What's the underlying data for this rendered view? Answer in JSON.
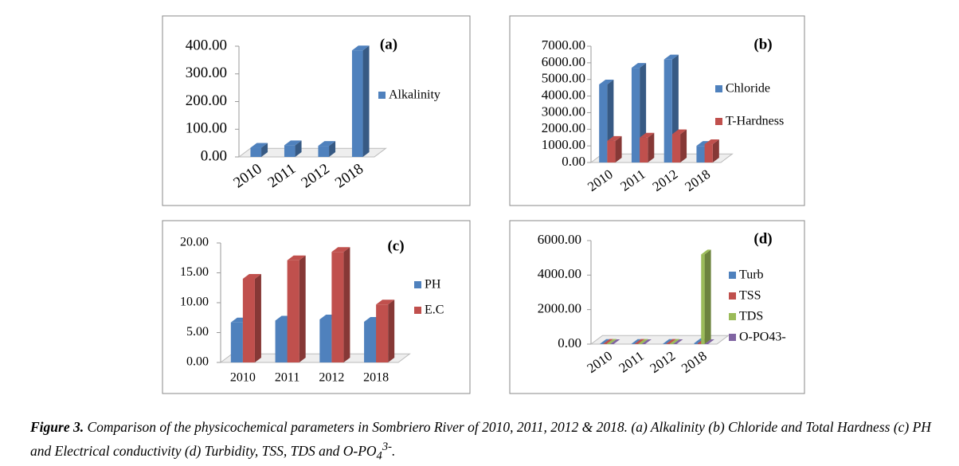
{
  "chart_data": [
    {
      "type": "bar",
      "panel_label": "(a)",
      "categories": [
        "2010",
        "2011",
        "2012",
        "2018"
      ],
      "series": [
        {
          "name": "Alkalinity",
          "color": "#4f81bd",
          "values": [
            33,
            42,
            40,
            385
          ]
        }
      ],
      "ylim": [
        0,
        400
      ],
      "yticks": [
        {
          "value": 0,
          "label": "0.00"
        },
        {
          "value": 100,
          "label": "100.00"
        },
        {
          "value": 200,
          "label": "200.00"
        },
        {
          "value": 300,
          "label": "300.00"
        },
        {
          "value": 400,
          "label": "400.00"
        }
      ]
    },
    {
      "type": "bar",
      "panel_label": "(b)",
      "categories": [
        "2010",
        "2011",
        "2012",
        "2018"
      ],
      "series": [
        {
          "name": "Chloride",
          "color": "#4f81bd",
          "values": [
            4700,
            5700,
            6200,
            1000
          ]
        },
        {
          "name": "T-Hardness",
          "color": "#c0504d",
          "values": [
            1300,
            1500,
            1700,
            1100
          ]
        }
      ],
      "ylim": [
        0,
        7000
      ],
      "yticks": [
        {
          "value": 0,
          "label": "0.00"
        },
        {
          "value": 1000,
          "label": "1000.00"
        },
        {
          "value": 2000,
          "label": "2000.00"
        },
        {
          "value": 3000,
          "label": "3000.00"
        },
        {
          "value": 4000,
          "label": "4000.00"
        },
        {
          "value": 5000,
          "label": "5000.00"
        },
        {
          "value": 6000,
          "label": "6000.00"
        },
        {
          "value": 7000,
          "label": "7000.00"
        }
      ]
    },
    {
      "type": "bar",
      "panel_label": "(c)",
      "categories": [
        "2010",
        "2011",
        "2012",
        "2018"
      ],
      "series": [
        {
          "name": "PH",
          "color": "#4f81bd",
          "values": [
            6.7,
            7.0,
            7.2,
            6.8
          ]
        },
        {
          "name": "E.C",
          "color": "#c0504d",
          "values": [
            14.0,
            17.1,
            18.5,
            9.7
          ]
        }
      ],
      "ylim": [
        0,
        20
      ],
      "yticks": [
        {
          "value": 0,
          "label": "0.00"
        },
        {
          "value": 5,
          "label": "5.00"
        },
        {
          "value": 10,
          "label": "10.00"
        },
        {
          "value": 15,
          "label": "15.00"
        },
        {
          "value": 20,
          "label": "20.00"
        }
      ]
    },
    {
      "type": "bar",
      "panel_label": "(d)",
      "categories": [
        "2010",
        "2011",
        "2012",
        "2018"
      ],
      "series": [
        {
          "name": "Turb",
          "color": "#4f81bd",
          "values": [
            10,
            10,
            10,
            60
          ]
        },
        {
          "name": "TSS",
          "color": "#c0504d",
          "values": [
            15,
            15,
            15,
            40
          ]
        },
        {
          "name": "TDS",
          "color": "#9bbb59",
          "values": [
            20,
            20,
            20,
            5200
          ]
        },
        {
          "name": "O-PO43-",
          "color": "#8064a2",
          "values": [
            1,
            1,
            1,
            2
          ]
        }
      ],
      "ylim": [
        0,
        6000
      ],
      "yticks": [
        {
          "value": 0,
          "label": "0.00"
        },
        {
          "value": 2000,
          "label": "2000.00"
        },
        {
          "value": 4000,
          "label": "4000.00"
        },
        {
          "value": 6000,
          "label": "6000.00"
        }
      ]
    }
  ],
  "caption": {
    "label": "Figure 3.",
    "text": "Comparison of the physicochemical parameters in Sombriero River of 2010, 2011, 2012 & 2018. (a) Alkalinity (b) Chloride and Total Hardness (c) PH and Electrical conductivity (d) Turbidity, TSS, TDS and O-PO",
    "sub": "4",
    "sup": "3-",
    "end": "."
  }
}
